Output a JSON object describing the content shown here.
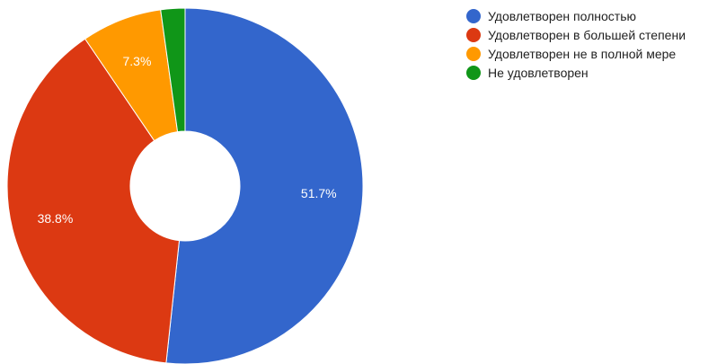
{
  "chart_data": {
    "type": "pie",
    "donut": true,
    "categories": [
      "Удовлетворен полностью",
      "Удовлетворен в большей степени",
      "Удовлетворен не в полной мере",
      "Не удовлетворен"
    ],
    "values": [
      51.7,
      38.8,
      7.3,
      2.2
    ],
    "display_labels": [
      "51.7%",
      "38.8%",
      "7.3%",
      ""
    ],
    "colors": [
      "#3366cc",
      "#dc3912",
      "#ff9900",
      "#109618"
    ],
    "legend_position": "top-right"
  }
}
